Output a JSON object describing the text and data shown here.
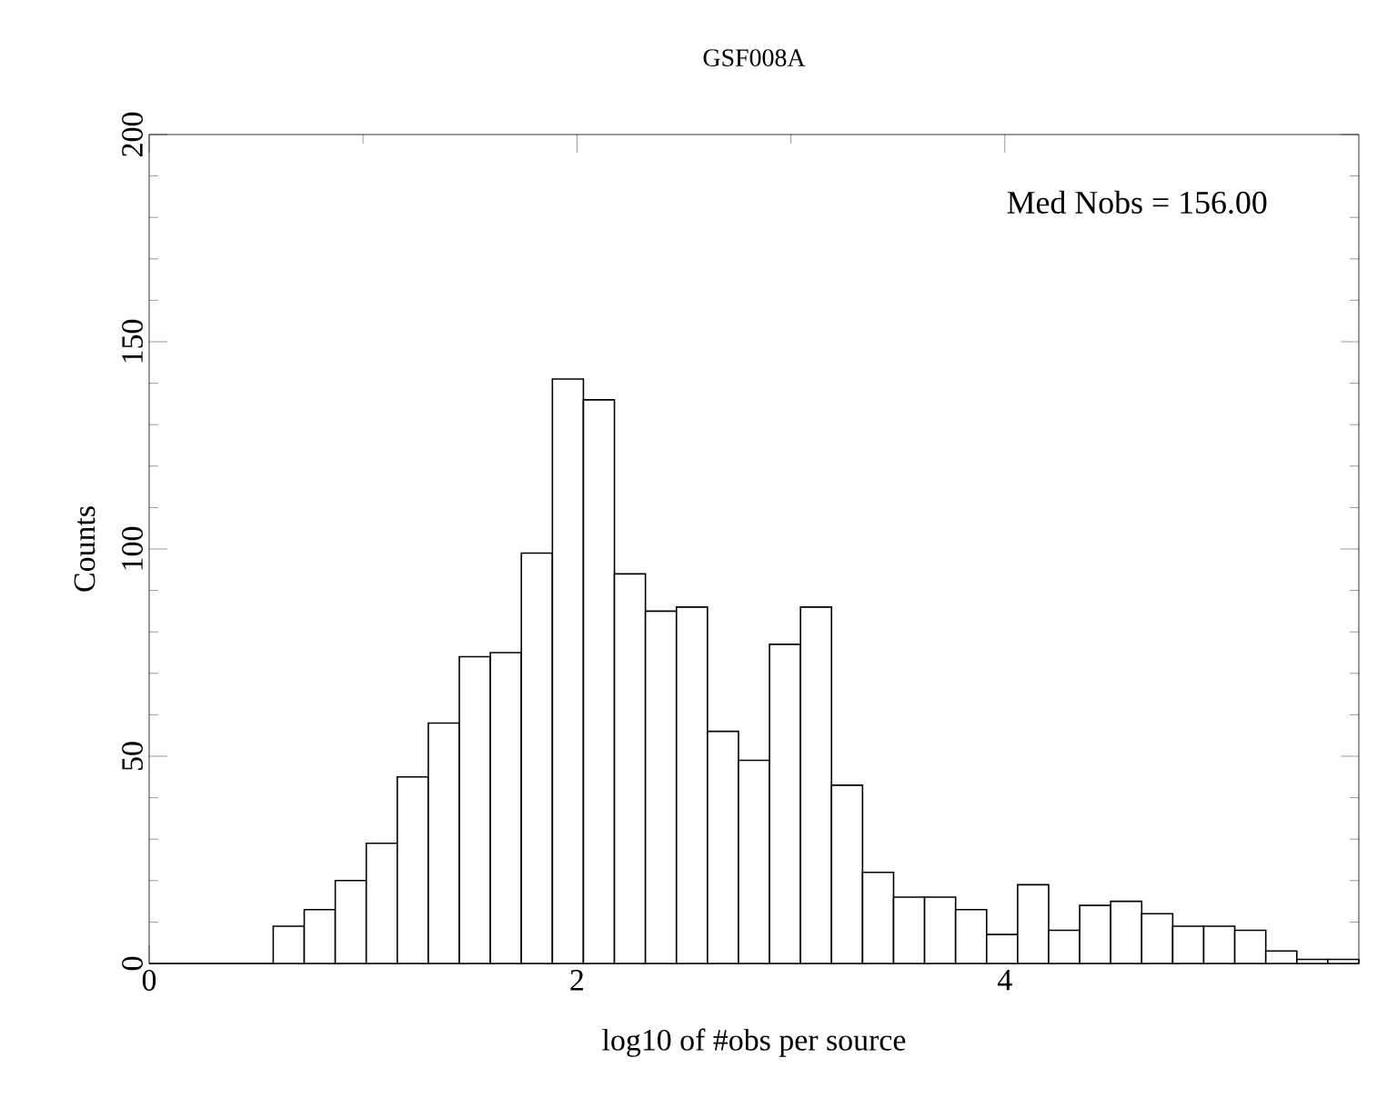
{
  "chart_data": {
    "type": "histogram",
    "title": "GSF008A",
    "xlabel": "log10 of #obs per source",
    "ylabel": "Counts",
    "bins": [
      0,
      0.145,
      0.29,
      0.435,
      0.58,
      0.725,
      0.87,
      1.015,
      1.16,
      1.305,
      1.45,
      1.595,
      1.74,
      1.885,
      2.03,
      2.175,
      2.32,
      2.465,
      2.61,
      2.755,
      2.9,
      3.045,
      3.19,
      3.335,
      3.48,
      3.625,
      3.77,
      3.915,
      4.06,
      4.205,
      4.35,
      4.495,
      4.64,
      4.785,
      4.93,
      5.075,
      5.22,
      5.365,
      5.51,
      5.655
    ],
    "values": [
      0,
      0,
      0,
      0,
      9,
      13,
      20,
      29,
      45,
      58,
      74,
      75,
      99,
      141,
      136,
      94,
      85,
      86,
      56,
      49,
      77,
      86,
      43,
      22,
      16,
      16,
      13,
      7,
      19,
      8,
      14,
      15,
      12,
      9,
      9,
      8,
      3,
      1,
      1
    ],
    "color": "#ffffff",
    "xlim": [
      0,
      5.655
    ],
    "ylim": [
      0,
      200
    ],
    "xticks": [
      0,
      2,
      4
    ],
    "yticks": [
      0,
      50,
      100,
      150,
      200
    ],
    "annotations": [
      "Med Nobs =   156.00"
    ]
  }
}
